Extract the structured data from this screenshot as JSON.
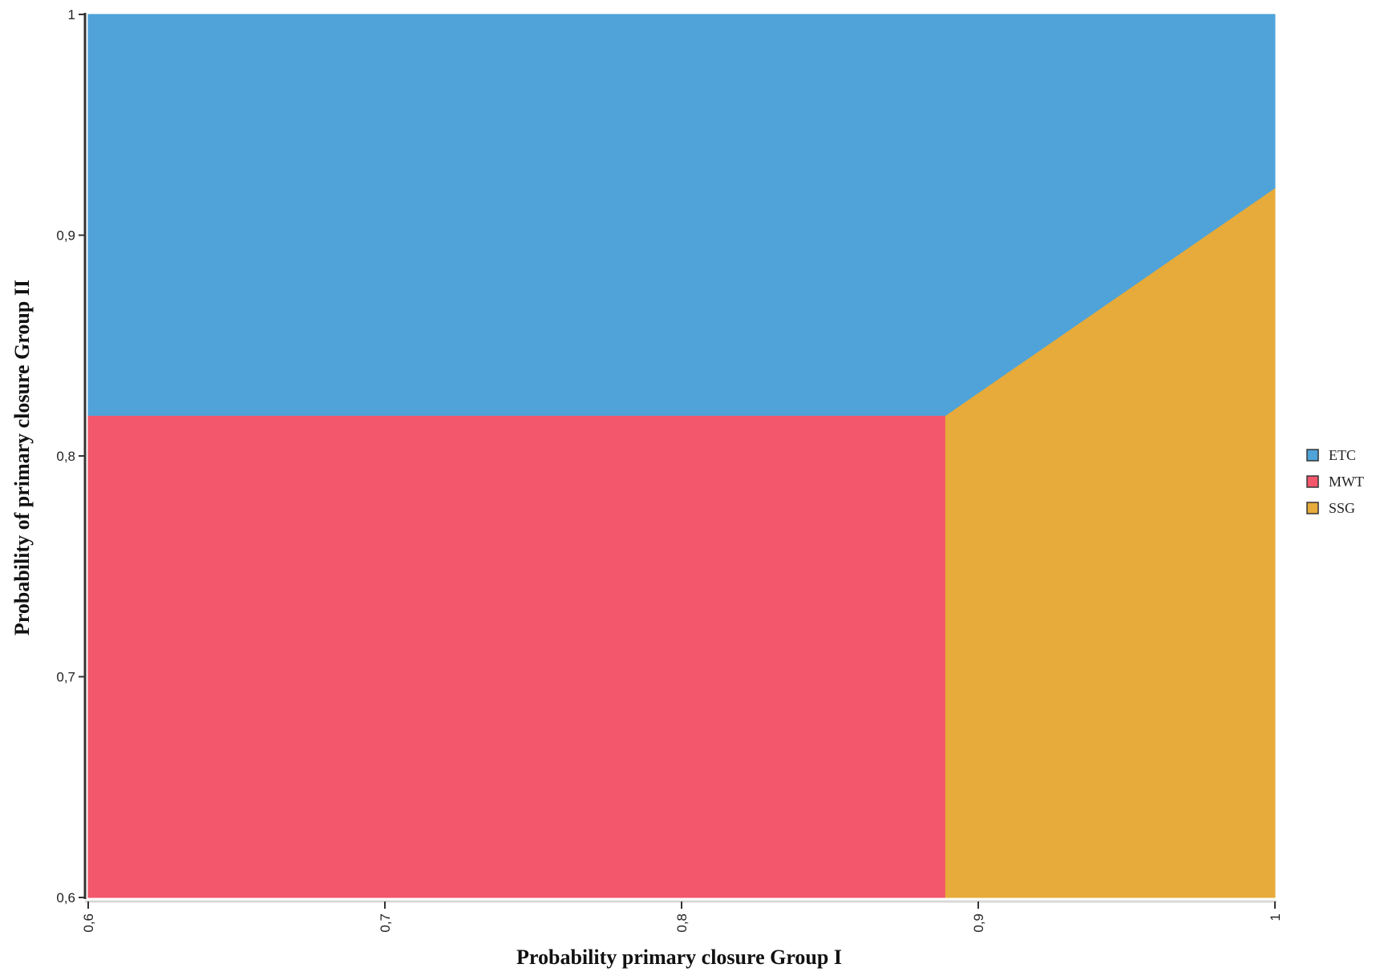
{
  "chart_data": {
    "type": "area",
    "title": "",
    "xlabel": "Probability primary closure Group I",
    "ylabel": "Probability of primary closure Group II",
    "xlim": [
      0.6,
      1.0
    ],
    "ylim": [
      0.6,
      1.0
    ],
    "x_ticks": [
      "0,6",
      "0,7",
      "0,8",
      "0,9",
      "1"
    ],
    "x_tick_values": [
      0.6,
      0.7,
      0.8,
      0.9,
      1.0
    ],
    "y_ticks": [
      "0,6",
      "0,7",
      "0,8",
      "0,9",
      "1"
    ],
    "y_tick_values": [
      0.6,
      0.7,
      0.8,
      0.9,
      1.0
    ],
    "grid": false,
    "legend_position": "right",
    "regions": [
      {
        "name": "ETC",
        "color": "#4fa3d9",
        "polygon": [
          [
            0.6,
            0.818
          ],
          [
            0.889,
            0.818
          ],
          [
            1.0,
            0.921
          ],
          [
            1.0,
            1.0
          ],
          [
            0.6,
            1.0
          ]
        ]
      },
      {
        "name": "MWT",
        "color": "#f2576c",
        "polygon": [
          [
            0.6,
            0.6
          ],
          [
            0.889,
            0.6
          ],
          [
            0.889,
            0.818
          ],
          [
            0.6,
            0.818
          ]
        ]
      },
      {
        "name": "SSG",
        "color": "#e6ab3a",
        "polygon": [
          [
            0.889,
            0.6
          ],
          [
            1.0,
            0.6
          ],
          [
            1.0,
            0.921
          ],
          [
            0.889,
            0.818
          ]
        ]
      }
    ],
    "legend": [
      {
        "label": "ETC",
        "color": "#4fa3d9"
      },
      {
        "label": "MWT",
        "color": "#f2576c"
      },
      {
        "label": "SSG",
        "color": "#e6ab3a"
      }
    ]
  }
}
